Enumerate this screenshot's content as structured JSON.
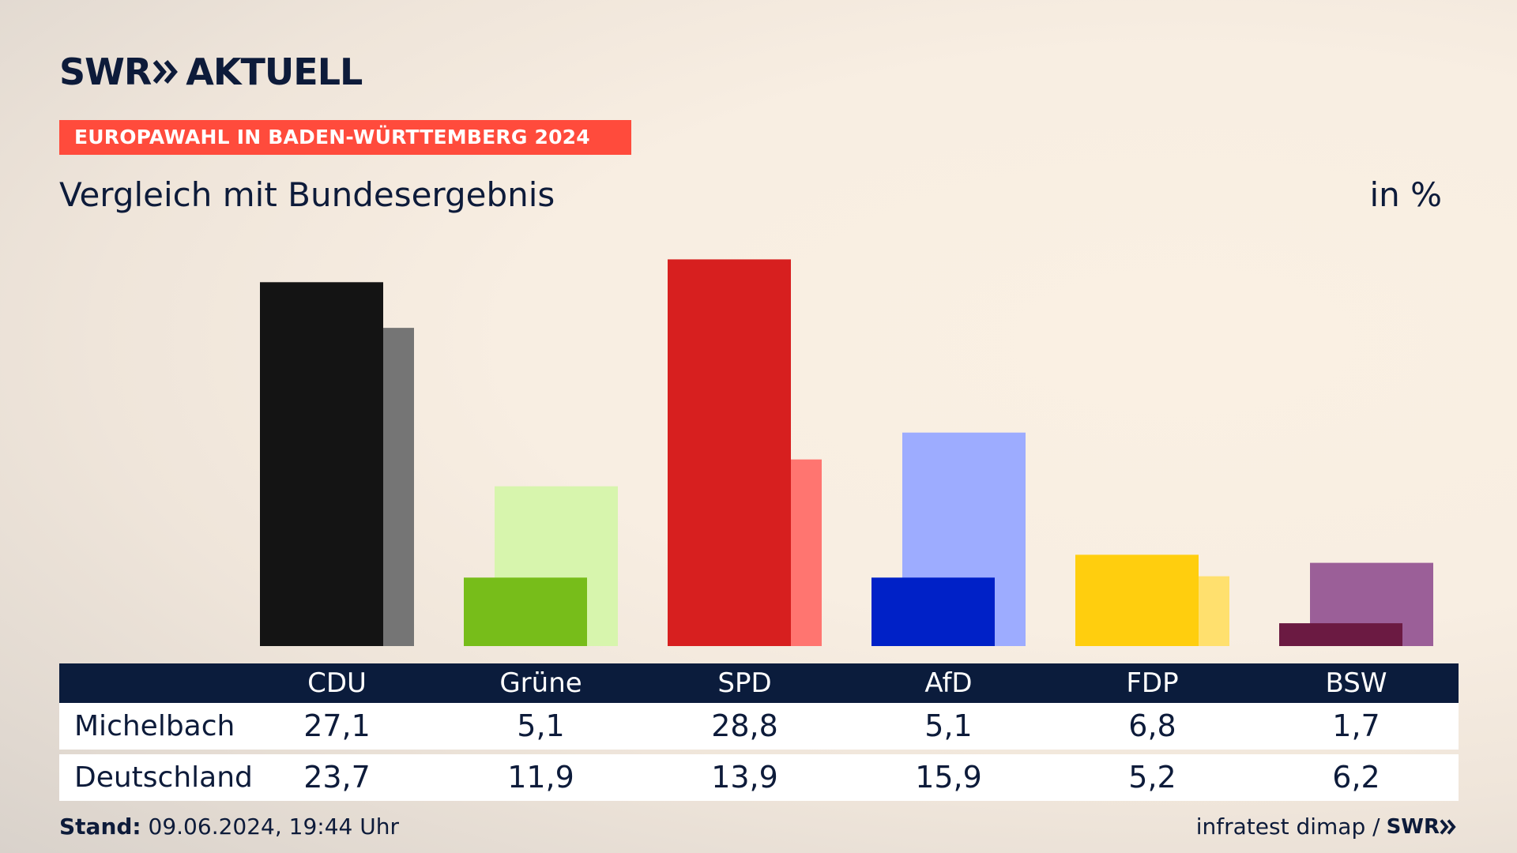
{
  "logo": {
    "brand": "SWR",
    "product": "AKTUELL"
  },
  "header": {
    "tag": "EUROPAWAHL IN BADEN-WÜRTTEMBERG 2024",
    "title": "Vergleich mit Bundesergebnis",
    "unit": "in %"
  },
  "chart_data": {
    "type": "bar",
    "title": "Vergleich mit Bundesergebnis",
    "unit": "in %",
    "categories": [
      "CDU",
      "Grüne",
      "SPD",
      "AfD",
      "FDP",
      "BSW"
    ],
    "series": [
      {
        "name": "Michelbach",
        "values": [
          27.1,
          5.1,
          28.8,
          5.1,
          6.8,
          1.7
        ],
        "colors": [
          "#141414",
          "#77bd1a",
          "#d71f1f",
          "#0021c7",
          "#ffce0e",
          "#6b1a42"
        ]
      },
      {
        "name": "Deutschland",
        "values": [
          23.7,
          11.9,
          13.9,
          15.9,
          5.2,
          6.2
        ],
        "colors": [
          "#757575",
          "#d7f5ad",
          "#ff7570",
          "#9dacff",
          "#ffe06e",
          "#9b5f98"
        ]
      }
    ]
  },
  "table": {
    "rows": [
      {
        "label": "Michelbach",
        "values": [
          "27,1",
          "5,1",
          "28,8",
          "5,1",
          "6,8",
          "1,7"
        ]
      },
      {
        "label": "Deutschland",
        "values": [
          "23,7",
          "11,9",
          "13,9",
          "15,9",
          "5,2",
          "6,2"
        ]
      }
    ]
  },
  "footer": {
    "stand_label": "Stand:",
    "stand_value": "09.06.2024, 19:44 Uhr",
    "source": "infratest dimap /",
    "source_brand": "SWR"
  }
}
